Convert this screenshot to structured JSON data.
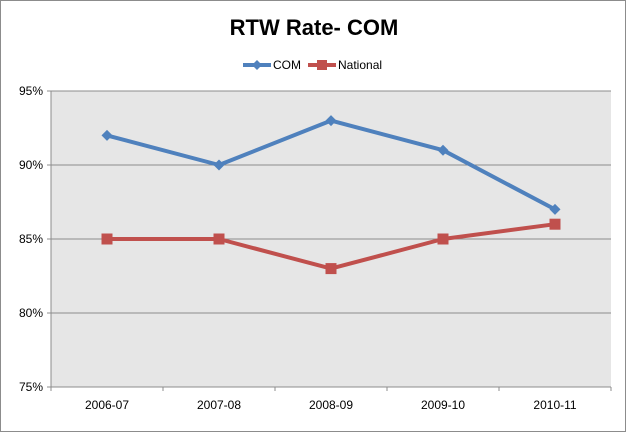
{
  "chart_data": {
    "type": "line",
    "title": "RTW Rate- COM",
    "xlabel": "",
    "ylabel": "",
    "categories": [
      "2006-07",
      "2007-08",
      "2008-09",
      "2009-10",
      "2010-11"
    ],
    "ylim": [
      75,
      95
    ],
    "yticks": [
      75,
      80,
      85,
      90,
      95
    ],
    "ytick_labels": [
      "75%",
      "80%",
      "85%",
      "90%",
      "95%"
    ],
    "grid": true,
    "legend_position": "top",
    "plot_background": "#e6e6e6",
    "series": [
      {
        "name": "COM",
        "values": [
          92,
          90,
          93,
          91,
          87
        ],
        "color": "#4f81bd",
        "marker": "diamond"
      },
      {
        "name": "National",
        "values": [
          85,
          85,
          83,
          85,
          86
        ],
        "color": "#c0504d",
        "marker": "square"
      }
    ]
  }
}
